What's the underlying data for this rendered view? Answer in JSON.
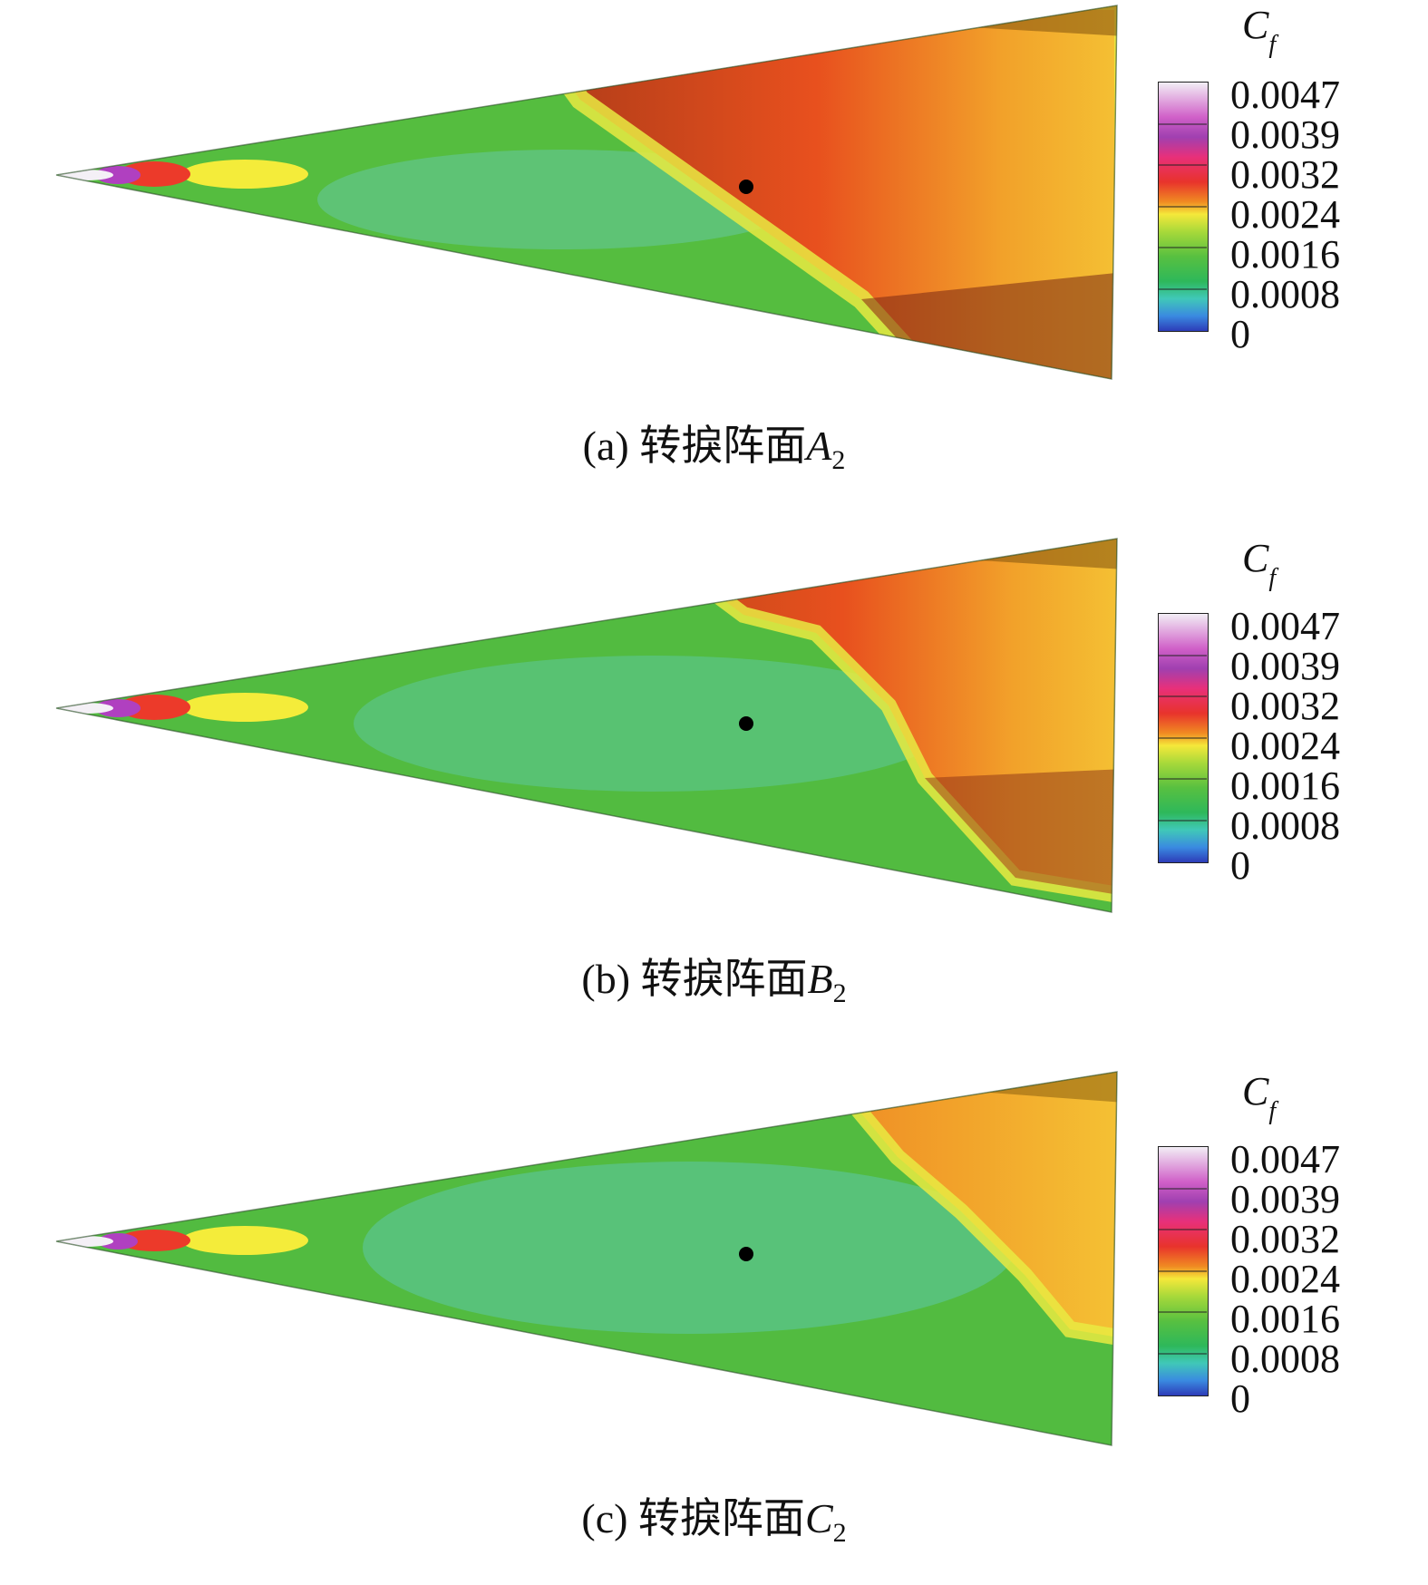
{
  "colorbar": {
    "title_main": "C",
    "title_sub": "f",
    "ticks": [
      "0.0047",
      "0.0039",
      "0.0032",
      "0.0024",
      "0.0016",
      "0.0008",
      "0"
    ]
  },
  "panels": [
    {
      "label": "(a) 转捩阵面",
      "var": "A",
      "sub": "2"
    },
    {
      "label": "(b) 转捩阵面",
      "var": "B",
      "sub": "2"
    },
    {
      "label": "(c) 转捩阵面",
      "var": "C",
      "sub": "2"
    }
  ]
}
